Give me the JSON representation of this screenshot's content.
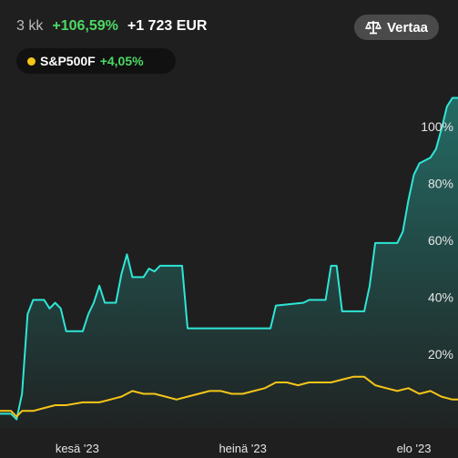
{
  "header": {
    "period": "3 kk",
    "percent_change": "+106,59%",
    "amount_change": "+1 723 EUR"
  },
  "compare_button": {
    "label": "Vertaa",
    "icon": "scale-icon"
  },
  "benchmark_chip": {
    "name": "S&P500F",
    "change": "+4,05%",
    "dot_color": "#f5c518"
  },
  "colors": {
    "accent": "#4cd964",
    "portfolio_line": "#2ee6d6",
    "benchmark_line": "#f5c518",
    "background": "#1f1f1f"
  },
  "chart_data": {
    "type": "line",
    "y_axis_side": "right",
    "y_tick_labels": [
      "100%",
      "80%",
      "60%",
      "40%",
      "20%"
    ],
    "y_ticks": [
      100,
      80,
      60,
      40,
      20
    ],
    "ylim": [
      -6,
      114
    ],
    "x_tick_labels": [
      "kesä '23",
      "heinä '23",
      "elo '23"
    ],
    "x_ticks": [
      14,
      44,
      75
    ],
    "xlim": [
      0,
      83
    ],
    "series": [
      {
        "color": "#2ee6d6",
        "fill": true,
        "points": [
          [
            0,
            -1
          ],
          [
            2,
            -1
          ],
          [
            3,
            -3
          ],
          [
            4,
            6
          ],
          [
            5,
            34
          ],
          [
            6,
            39
          ],
          [
            8,
            39
          ],
          [
            9,
            36
          ],
          [
            10,
            38
          ],
          [
            11,
            36
          ],
          [
            12,
            28
          ],
          [
            15,
            28
          ],
          [
            16,
            34
          ],
          [
            17,
            38
          ],
          [
            18,
            44
          ],
          [
            19,
            38
          ],
          [
            21,
            38
          ],
          [
            22,
            48
          ],
          [
            23,
            55
          ],
          [
            24,
            47
          ],
          [
            26,
            47
          ],
          [
            27,
            50
          ],
          [
            28,
            49
          ],
          [
            29,
            51
          ],
          [
            31,
            51
          ],
          [
            33,
            51
          ],
          [
            34,
            29
          ],
          [
            49,
            29
          ],
          [
            50,
            37
          ],
          [
            55,
            38
          ],
          [
            56,
            39
          ],
          [
            59,
            39
          ],
          [
            60,
            51
          ],
          [
            61,
            51
          ],
          [
            62,
            35
          ],
          [
            66,
            35
          ],
          [
            67,
            44
          ],
          [
            68,
            59
          ],
          [
            72,
            59
          ],
          [
            73,
            63
          ],
          [
            74,
            74
          ],
          [
            75,
            83
          ],
          [
            76,
            87
          ],
          [
            78,
            89
          ],
          [
            79,
            92
          ],
          [
            80,
            99
          ],
          [
            81,
            107
          ],
          [
            82,
            110
          ],
          [
            83,
            110
          ]
        ]
      },
      {
        "color": "#f5c518",
        "fill": false,
        "points": [
          [
            0,
            0
          ],
          [
            2,
            0
          ],
          [
            3,
            -2
          ],
          [
            4,
            0
          ],
          [
            6,
            0
          ],
          [
            8,
            1
          ],
          [
            10,
            2
          ],
          [
            12,
            2
          ],
          [
            15,
            3
          ],
          [
            18,
            3
          ],
          [
            20,
            4
          ],
          [
            22,
            5
          ],
          [
            24,
            7
          ],
          [
            26,
            6
          ],
          [
            28,
            6
          ],
          [
            30,
            5
          ],
          [
            32,
            4
          ],
          [
            34,
            5
          ],
          [
            36,
            6
          ],
          [
            38,
            7
          ],
          [
            40,
            7
          ],
          [
            42,
            6
          ],
          [
            44,
            6
          ],
          [
            46,
            7
          ],
          [
            48,
            8
          ],
          [
            50,
            10
          ],
          [
            52,
            10
          ],
          [
            54,
            9
          ],
          [
            56,
            10
          ],
          [
            58,
            10
          ],
          [
            60,
            10
          ],
          [
            62,
            11
          ],
          [
            64,
            12
          ],
          [
            66,
            12
          ],
          [
            68,
            9
          ],
          [
            70,
            8
          ],
          [
            72,
            7
          ],
          [
            74,
            8
          ],
          [
            76,
            6
          ],
          [
            78,
            7
          ],
          [
            80,
            5
          ],
          [
            82,
            4
          ],
          [
            83,
            4
          ]
        ]
      }
    ]
  }
}
